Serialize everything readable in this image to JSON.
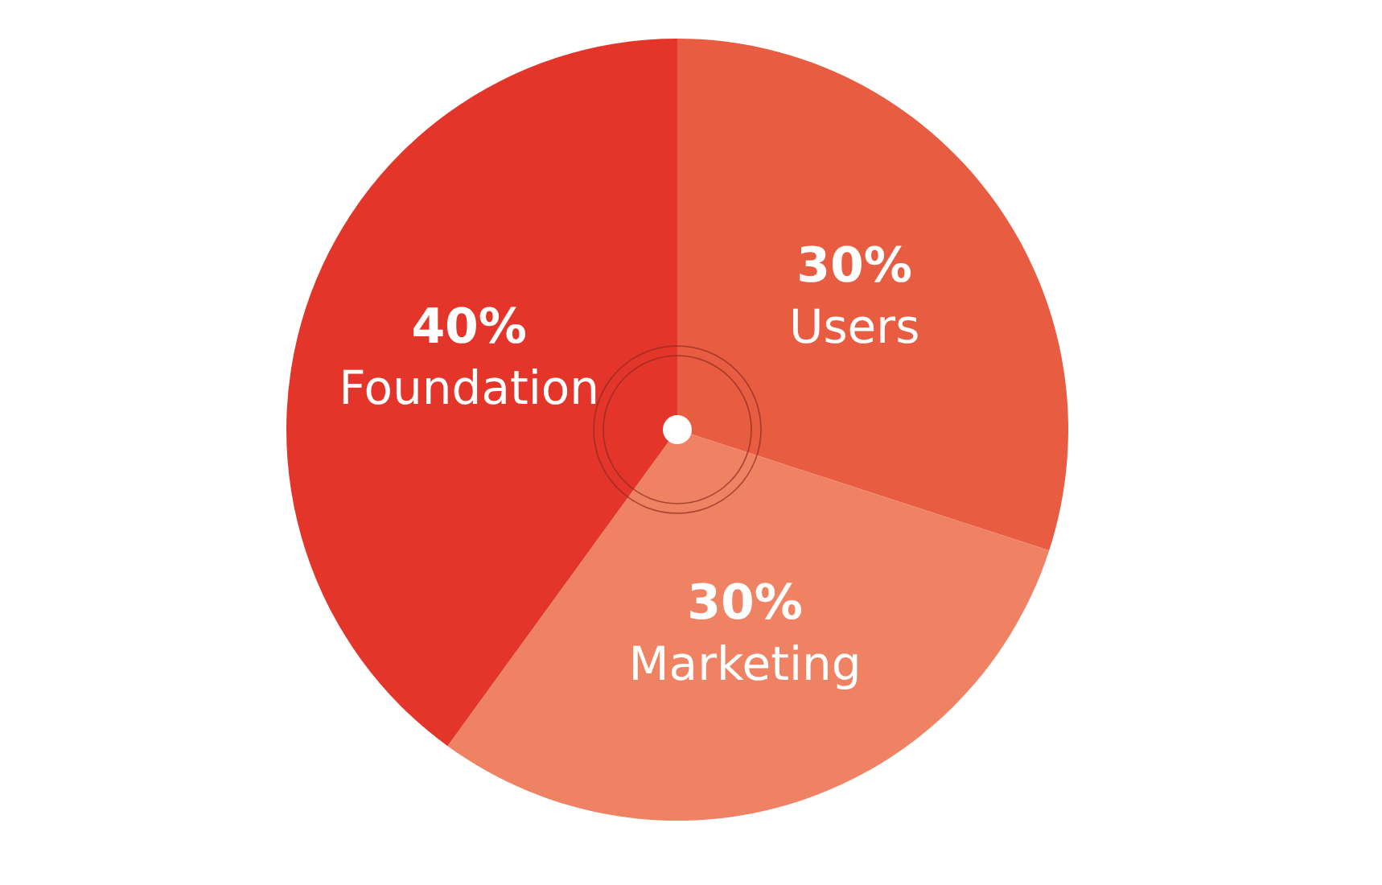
{
  "chart_data": {
    "type": "pie",
    "categories": [
      "Users",
      "Marketing",
      "Foundation"
    ],
    "values": [
      30,
      30,
      40
    ],
    "colors": [
      "#e85c42",
      "#ef8263",
      "#e3352a"
    ],
    "value_labels": [
      "30%",
      "30%",
      "40%"
    ]
  }
}
